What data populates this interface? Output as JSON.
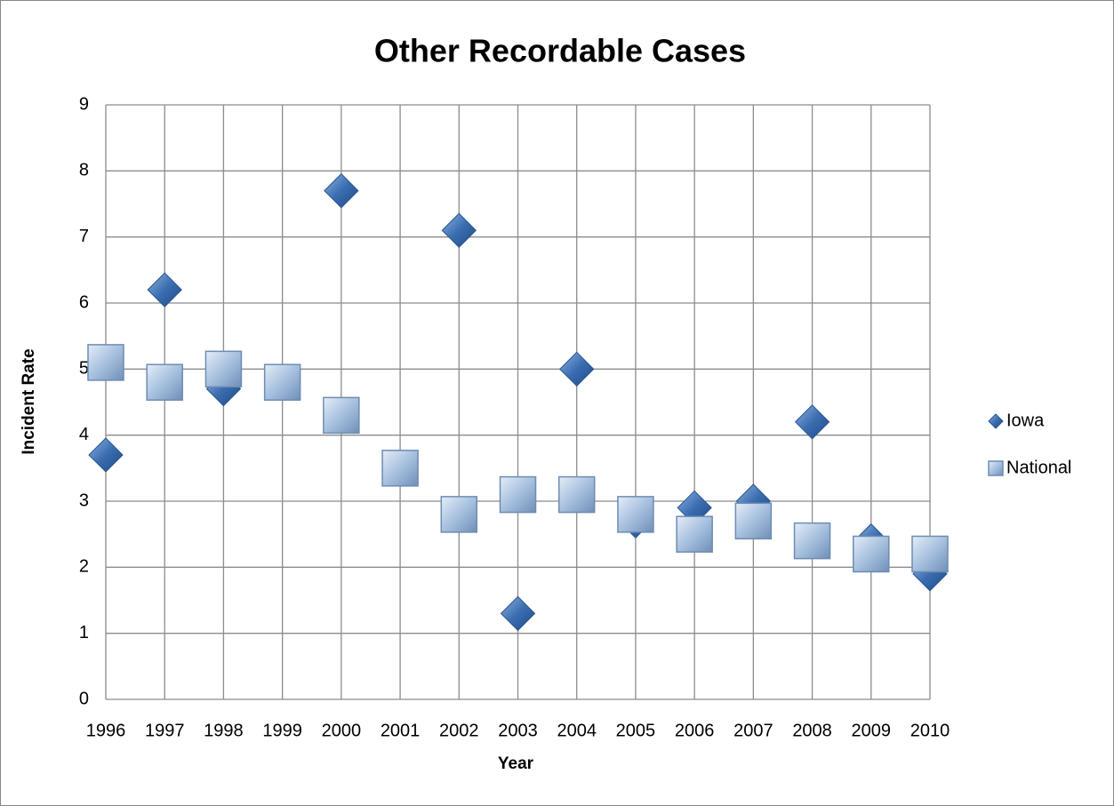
{
  "chart_data": {
    "type": "scatter",
    "title": "Other Recordable Cases",
    "xlabel": "Year",
    "ylabel": "Incident Rate",
    "x": [
      1996,
      1997,
      1998,
      1999,
      2000,
      2001,
      2002,
      2003,
      2004,
      2005,
      2006,
      2007,
      2008,
      2009,
      2010
    ],
    "series": [
      {
        "name": "Iowa",
        "color": "#3a6db0",
        "marker": "diamond",
        "values": [
          3.7,
          6.2,
          4.7,
          4.8,
          7.7,
          3.5,
          7.1,
          1.3,
          5.0,
          2.7,
          2.9,
          3.0,
          4.2,
          2.4,
          1.9
        ]
      },
      {
        "name": "National",
        "color": "#a7c0de",
        "marker": "square",
        "values": [
          5.1,
          4.8,
          5.0,
          4.8,
          4.3,
          3.5,
          2.8,
          3.1,
          3.1,
          2.8,
          2.5,
          2.7,
          2.4,
          2.2,
          2.2
        ]
      }
    ],
    "xlim": [
      1996,
      2010
    ],
    "xticks": [
      1996,
      1997,
      1998,
      1999,
      2000,
      2001,
      2002,
      2003,
      2004,
      2005,
      2006,
      2007,
      2008,
      2009,
      2010
    ],
    "ylim": [
      0,
      9
    ],
    "yticks": [
      0,
      1,
      2,
      3,
      4,
      5,
      6,
      7,
      8,
      9
    ],
    "grid": true,
    "legend": "right"
  }
}
